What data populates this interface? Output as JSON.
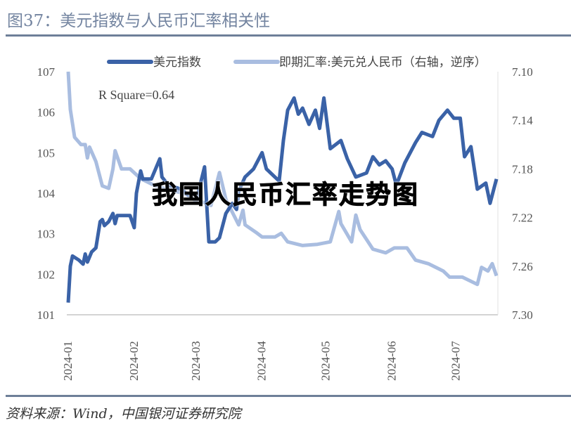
{
  "title": "图37：美元指数与人民币汇率相关性",
  "source": "资料来源：Wind，中国银河证券研究院",
  "watermark": "我国人民币汇率走势图",
  "colors": {
    "dxy": "#3a62a7",
    "usdcny": "#a9bde0",
    "title": "#7384a0",
    "rule": "#6e7f98"
  },
  "chart_data": {
    "type": "line",
    "annotation": "R Square=0.64",
    "legend_position": "top",
    "grid": false,
    "x_ticks": [
      "2024-01",
      "2024-02",
      "2024-03",
      "2024-04",
      "2024-05",
      "2024-06",
      "2024-07"
    ],
    "y_left": {
      "ticks": [
        "101",
        "102",
        "103",
        "104",
        "105",
        "106",
        "107"
      ],
      "range": [
        101,
        107
      ]
    },
    "y_right": {
      "ticks": [
        "7.10",
        "7.14",
        "7.18",
        "7.22",
        "7.26",
        "7.30"
      ],
      "range": [
        7.1,
        7.3
      ],
      "inverted": true
    },
    "series": [
      {
        "name": "美元指数",
        "axis": "left",
        "points": [
          [
            "2024-01-01",
            101.3
          ],
          [
            "2024-01-02",
            102.2
          ],
          [
            "2024-01-03",
            102.45
          ],
          [
            "2024-01-06",
            102.35
          ],
          [
            "2024-01-08",
            102.25
          ],
          [
            "2024-01-09",
            102.5
          ],
          [
            "2024-01-10",
            102.3
          ],
          [
            "2024-01-12",
            102.55
          ],
          [
            "2024-01-14",
            102.65
          ],
          [
            "2024-01-16",
            103.3
          ],
          [
            "2024-01-17",
            103.35
          ],
          [
            "2024-01-18",
            103.2
          ],
          [
            "2024-01-20",
            103.3
          ],
          [
            "2024-01-22",
            103.5
          ],
          [
            "2024-01-23",
            103.25
          ],
          [
            "2024-01-24",
            103.45
          ],
          [
            "2024-01-30",
            103.45
          ],
          [
            "2024-02-01",
            103.15
          ],
          [
            "2024-02-02",
            104.0
          ],
          [
            "2024-02-04",
            104.55
          ],
          [
            "2024-02-05",
            104.35
          ],
          [
            "2024-02-09",
            104.35
          ],
          [
            "2024-02-13",
            104.85
          ],
          [
            "2024-02-14",
            104.4
          ],
          [
            "2024-02-17",
            104.2
          ],
          [
            "2024-02-23",
            104.1
          ],
          [
            "2024-03-01",
            103.8
          ],
          [
            "2024-03-05",
            104.65
          ],
          [
            "2024-03-07",
            102.8
          ],
          [
            "2024-03-10",
            102.8
          ],
          [
            "2024-03-12",
            102.9
          ],
          [
            "2024-03-15",
            103.5
          ],
          [
            "2024-03-18",
            103.75
          ],
          [
            "2024-03-20",
            103.6
          ],
          [
            "2024-03-21",
            104.05
          ],
          [
            "2024-03-24",
            104.4
          ],
          [
            "2024-03-28",
            104.6
          ],
          [
            "2024-04-01",
            105.0
          ],
          [
            "2024-04-03",
            104.6
          ],
          [
            "2024-04-07",
            104.4
          ],
          [
            "2024-04-09",
            104.3
          ],
          [
            "2024-04-11",
            105.3
          ],
          [
            "2024-04-13",
            106.05
          ],
          [
            "2024-04-16",
            106.35
          ],
          [
            "2024-04-18",
            105.95
          ],
          [
            "2024-04-20",
            106.1
          ],
          [
            "2024-04-23",
            105.7
          ],
          [
            "2024-04-26",
            106.05
          ],
          [
            "2024-04-28",
            105.6
          ],
          [
            "2024-04-30",
            106.35
          ],
          [
            "2024-05-03",
            105.1
          ],
          [
            "2024-05-08",
            105.3
          ],
          [
            "2024-05-11",
            104.85
          ],
          [
            "2024-05-15",
            104.4
          ],
          [
            "2024-05-20",
            104.5
          ],
          [
            "2024-05-23",
            104.9
          ],
          [
            "2024-05-26",
            104.7
          ],
          [
            "2024-05-29",
            104.8
          ],
          [
            "2024-06-01",
            104.6
          ],
          [
            "2024-06-03",
            104.2
          ],
          [
            "2024-06-07",
            104.75
          ],
          [
            "2024-06-12",
            105.25
          ],
          [
            "2024-06-15",
            105.5
          ],
          [
            "2024-06-20",
            105.4
          ],
          [
            "2024-06-23",
            105.8
          ],
          [
            "2024-06-27",
            106.05
          ],
          [
            "2024-06-30",
            105.85
          ],
          [
            "2024-07-03",
            105.85
          ],
          [
            "2024-07-05",
            104.9
          ],
          [
            "2024-07-08",
            105.15
          ],
          [
            "2024-07-11",
            104.1
          ],
          [
            "2024-07-15",
            104.25
          ],
          [
            "2024-07-17",
            103.75
          ],
          [
            "2024-07-20",
            104.35
          ]
        ]
      },
      {
        "name": "即期汇率:美元兑人民币（右轴，逆序）",
        "axis": "right",
        "points": [
          [
            "2024-01-01",
            7.1
          ],
          [
            "2024-01-02",
            7.131
          ],
          [
            "2024-01-04",
            7.154
          ],
          [
            "2024-01-07",
            7.16
          ],
          [
            "2024-01-09",
            7.16
          ],
          [
            "2024-01-10",
            7.171
          ],
          [
            "2024-01-11",
            7.162
          ],
          [
            "2024-01-14",
            7.174
          ],
          [
            "2024-01-17",
            7.194
          ],
          [
            "2024-01-20",
            7.196
          ],
          [
            "2024-01-22",
            7.18
          ],
          [
            "2024-01-23",
            7.165
          ],
          [
            "2024-01-26",
            7.18
          ],
          [
            "2024-01-30",
            7.18
          ],
          [
            "2024-02-04",
            7.188
          ],
          [
            "2024-02-11",
            7.194
          ],
          [
            "2024-02-17",
            7.197
          ],
          [
            "2024-02-24",
            7.2
          ],
          [
            "2024-03-01",
            7.205
          ],
          [
            "2024-03-08",
            7.21
          ],
          [
            "2024-03-12",
            7.183
          ],
          [
            "2024-03-15",
            7.205
          ],
          [
            "2024-03-21",
            7.226
          ],
          [
            "2024-03-23",
            7.214
          ],
          [
            "2024-03-24",
            7.226
          ],
          [
            "2024-03-29",
            7.232
          ],
          [
            "2024-04-01",
            7.236
          ],
          [
            "2024-04-07",
            7.236
          ],
          [
            "2024-04-10",
            7.233
          ],
          [
            "2024-04-13",
            7.24
          ],
          [
            "2024-04-20",
            7.243
          ],
          [
            "2024-04-27",
            7.242
          ],
          [
            "2024-05-03",
            7.24
          ],
          [
            "2024-05-07",
            7.215
          ],
          [
            "2024-05-08",
            7.225
          ],
          [
            "2024-05-13",
            7.24
          ],
          [
            "2024-05-15",
            7.218
          ],
          [
            "2024-05-17",
            7.23
          ],
          [
            "2024-05-23",
            7.246
          ],
          [
            "2024-05-29",
            7.249
          ],
          [
            "2024-06-02",
            7.245
          ],
          [
            "2024-06-08",
            7.245
          ],
          [
            "2024-06-12",
            7.255
          ],
          [
            "2024-06-18",
            7.258
          ],
          [
            "2024-06-25",
            7.264
          ],
          [
            "2024-06-28",
            7.269
          ],
          [
            "2024-07-04",
            7.269
          ],
          [
            "2024-07-11",
            7.275
          ],
          [
            "2024-07-13",
            7.261
          ],
          [
            "2024-07-16",
            7.264
          ],
          [
            "2024-07-18",
            7.258
          ],
          [
            "2024-07-20",
            7.268
          ]
        ]
      }
    ]
  }
}
